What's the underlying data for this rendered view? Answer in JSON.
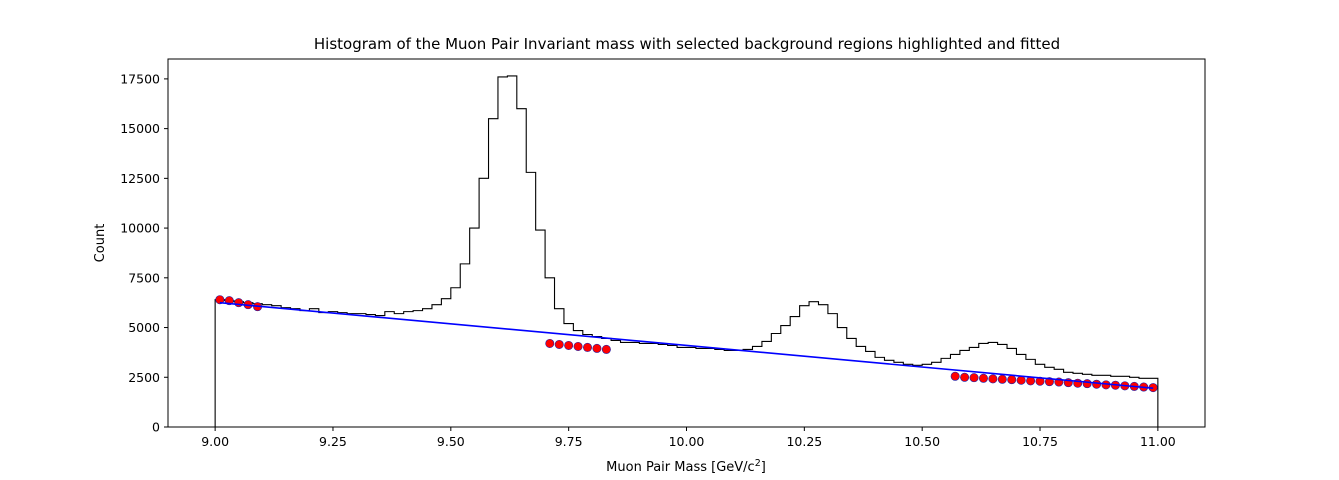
{
  "chart_data": {
    "type": "histogram",
    "title": "Histogram of the Muon Pair Invariant mass with selected background regions highlighted and fitted",
    "xlabel_prefix": "Muon Pair Mass [GeV/c",
    "xlabel_sup": "2",
    "xlabel_suffix": "]",
    "ylabel": "Count",
    "xlim": [
      8.9,
      11.1
    ],
    "ylim": [
      0,
      18500
    ],
    "xticks": [
      9.0,
      9.25,
      9.5,
      9.75,
      10.0,
      10.25,
      10.5,
      10.75,
      11.0
    ],
    "xtick_labels": [
      "9.00",
      "9.25",
      "9.50",
      "9.75",
      "10.00",
      "10.25",
      "10.50",
      "10.75",
      "11.00"
    ],
    "yticks": [
      0,
      2500,
      5000,
      7500,
      10000,
      12500,
      15000,
      17500
    ],
    "ytick_labels": [
      "0",
      "2500",
      "5000",
      "7500",
      "10000",
      "12500",
      "15000",
      "17500"
    ],
    "histogram": {
      "bin_start": 9.0,
      "bin_width": 0.02,
      "color": "#000000",
      "counts": [
        6400,
        6350,
        6300,
        6250,
        6200,
        6150,
        6100,
        6000,
        5950,
        5850,
        5950,
        5750,
        5800,
        5750,
        5700,
        5700,
        5650,
        5600,
        5800,
        5700,
        5800,
        5850,
        5950,
        6150,
        6450,
        7000,
        8200,
        10000,
        12500,
        15500,
        17600,
        17650,
        16000,
        12800,
        9900,
        7500,
        5950,
        5200,
        4850,
        4650,
        4550,
        4450,
        4350,
        4250,
        4250,
        4200,
        4200,
        4150,
        4100,
        4000,
        4000,
        3950,
        3950,
        3900,
        3850,
        3850,
        3900,
        4050,
        4300,
        4700,
        5100,
        5550,
        6100,
        6300,
        6150,
        5700,
        5000,
        4450,
        4050,
        3800,
        3500,
        3350,
        3250,
        3150,
        3100,
        3150,
        3250,
        3450,
        3650,
        3850,
        4000,
        4200,
        4250,
        4150,
        3950,
        3650,
        3400,
        3150,
        3000,
        2900,
        2750,
        2700,
        2650,
        2600,
        2600,
        2550,
        2550,
        2500,
        2450,
        2450
      ]
    },
    "points": {
      "color": "#ff0000",
      "edge_color": "#1f1fa8",
      "x": [
        9.01,
        9.03,
        9.05,
        9.07,
        9.09,
        9.71,
        9.73,
        9.75,
        9.77,
        9.79,
        9.81,
        9.83,
        10.57,
        10.59,
        10.61,
        10.63,
        10.65,
        10.67,
        10.69,
        10.71,
        10.73,
        10.75,
        10.77,
        10.79,
        10.81,
        10.83,
        10.85,
        10.87,
        10.89,
        10.91,
        10.93,
        10.95,
        10.97,
        10.99
      ],
      "y": [
        6400,
        6350,
        6250,
        6150,
        6050,
        4200,
        4150,
        4100,
        4050,
        4000,
        3950,
        3900,
        2550,
        2500,
        2480,
        2450,
        2420,
        2400,
        2380,
        2350,
        2320,
        2300,
        2280,
        2260,
        2230,
        2200,
        2180,
        2150,
        2120,
        2100,
        2070,
        2040,
        2010,
        1980
      ]
    },
    "fit_line": {
      "color": "#0000ff",
      "x": [
        9.01,
        10.99
      ],
      "y": [
        6250,
        1950
      ]
    }
  }
}
